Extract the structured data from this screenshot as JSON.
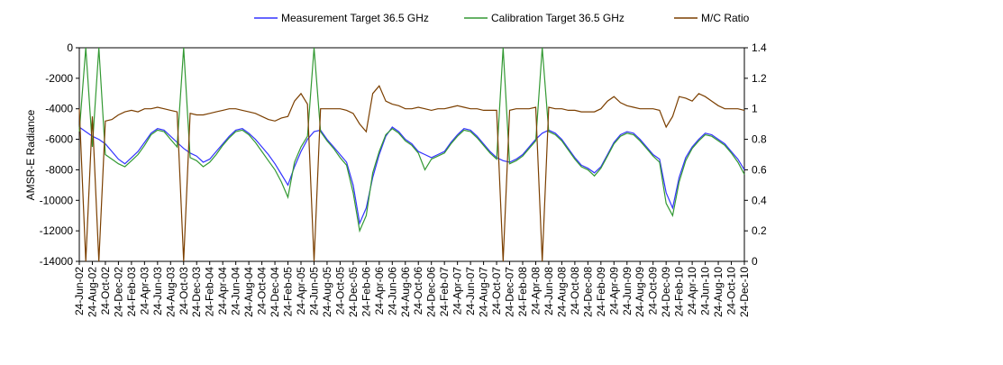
{
  "chart_data": {
    "type": "line",
    "categories": [
      "24-Jun-02",
      null,
      "24-Aug-02",
      null,
      "24-Oct-02",
      null,
      "24-Dec-02",
      null,
      "24-Feb-03",
      null,
      "24-Apr-03",
      null,
      "24-Jun-03",
      null,
      "24-Aug-03",
      null,
      "24-Oct-03",
      null,
      "24-Dec-03",
      null,
      "24-Feb-04",
      null,
      "24-Apr-04",
      null,
      "24-Jun-04",
      null,
      "24-Aug-04",
      null,
      "24-Oct-04",
      null,
      "24-Dec-04",
      null,
      "24-Feb-05",
      null,
      "24-Apr-05",
      null,
      "24-Jun-05",
      null,
      "24-Aug-05",
      null,
      "24-Oct-05",
      null,
      "24-Dec-05",
      null,
      "24-Feb-06",
      null,
      "24-Apr-06",
      null,
      "24-Jun-06",
      null,
      "24-Aug-06",
      null,
      "24-Oct-06",
      null,
      "24-Dec-06",
      null,
      "24-Feb-07",
      null,
      "24-Apr-07",
      null,
      "24-Jun-07",
      null,
      "24-Aug-07",
      null,
      "24-Oct-07",
      null,
      "24-Dec-07",
      null,
      "24-Feb-08",
      null,
      "24-Apr-08",
      null,
      "24-Jun-08",
      null,
      "24-Aug-08",
      null,
      "24-Oct-08",
      null,
      "24-Dec-08",
      null,
      "24-Feb-09",
      null,
      "24-Apr-09",
      null,
      "24-Jun-09",
      null,
      "24-Aug-09",
      null,
      "24-Oct-09",
      null,
      "24-Dec-09",
      null,
      "24-Feb-10",
      null,
      "24-Apr-10",
      null,
      "24-Jun-10",
      null,
      "24-Aug-10",
      null,
      "24-Oct-10",
      null,
      "24-Dec-10"
    ],
    "series": [
      {
        "name": "Measurement Target 36.5 GHz",
        "color": "#3333ff",
        "values": [
          -5200,
          -5500,
          -5800,
          -6000,
          -6300,
          -6800,
          -7300,
          -7600,
          -7200,
          -6800,
          -6200,
          -5600,
          -5300,
          -5400,
          -5800,
          -6200,
          -6600,
          -6900,
          -7100,
          -7500,
          -7300,
          -6800,
          -6300,
          -5800,
          -5400,
          -5300,
          -5600,
          -6000,
          -6500,
          -7000,
          -7600,
          -8300,
          -9000,
          -7800,
          -6800,
          -6000,
          -5500,
          -5400,
          -6000,
          -6500,
          -7000,
          -7500,
          -9000,
          -11500,
          -10500,
          -8500,
          -7000,
          -5800,
          -5200,
          -5500,
          -6000,
          -6300,
          -6800,
          -7000,
          -7200,
          -7000,
          -6800,
          -6200,
          -5700,
          -5300,
          -5400,
          -5800,
          -6300,
          -6800,
          -7200,
          -7400,
          -7500,
          -7300,
          -7000,
          -6500,
          -6000,
          -5600,
          -5400,
          -5600,
          -6000,
          -6600,
          -7200,
          -7700,
          -7900,
          -8200,
          -7800,
          -7000,
          -6200,
          -5700,
          -5500,
          -5600,
          -6000,
          -6500,
          -7000,
          -7300,
          -9500,
          -10500,
          -8500,
          -7200,
          -6500,
          -6000,
          -5600,
          -5700,
          -6000,
          -6300,
          -6800,
          -7300,
          -8000
        ]
      },
      {
        "name": "Calibration Target 36.5 GHz",
        "color": "#339933",
        "values": [
          -5500,
          0,
          -6500,
          0,
          -7000,
          -7300,
          -7600,
          -7800,
          -7400,
          -7000,
          -6400,
          -5700,
          -5400,
          -5500,
          -6000,
          -6500,
          0,
          -7200,
          -7400,
          -7800,
          -7500,
          -7000,
          -6400,
          -5900,
          -5500,
          -5400,
          -5700,
          -6200,
          -6800,
          -7400,
          -8000,
          -8800,
          -9800,
          -7500,
          -6500,
          -5800,
          0,
          -5500,
          -6100,
          -6600,
          -7200,
          -7700,
          -9500,
          -12000,
          -11000,
          -8200,
          -6800,
          -5700,
          -5300,
          -5600,
          -6100,
          -6400,
          -6900,
          -8000,
          -7300,
          -7100,
          -6900,
          -6300,
          -5800,
          -5400,
          -5500,
          -5900,
          -6400,
          -6900,
          -7300,
          0,
          -7600,
          -7400,
          -7100,
          -6600,
          -6100,
          0,
          -5500,
          -5700,
          -6100,
          -6700,
          -7300,
          -7800,
          -8000,
          -8400,
          -7900,
          -7100,
          -6300,
          -5800,
          -5600,
          -5700,
          -6100,
          -6600,
          -7100,
          -7500,
          -10200,
          -11000,
          -8800,
          -7400,
          -6600,
          -6100,
          -5700,
          -5800,
          -6100,
          -6400,
          -6900,
          -7500,
          -8300
        ]
      },
      {
        "name": "M/C Ratio",
        "color": "#7b3f00",
        "axis": "y2",
        "values": [
          1.0,
          0,
          0.95,
          0,
          0.92,
          0.93,
          0.96,
          0.98,
          0.99,
          0.98,
          1.0,
          1.0,
          1.01,
          1.0,
          0.99,
          0.98,
          0,
          0.97,
          0.96,
          0.96,
          0.97,
          0.98,
          0.99,
          1.0,
          1.0,
          0.99,
          0.98,
          0.97,
          0.95,
          0.93,
          0.92,
          0.94,
          0.95,
          1.05,
          1.1,
          1.03,
          0,
          1.0,
          1.0,
          1.0,
          1.0,
          0.99,
          0.97,
          0.9,
          0.85,
          1.1,
          1.15,
          1.05,
          1.03,
          1.02,
          1.0,
          1.0,
          1.01,
          1.0,
          0.99,
          1.0,
          1.0,
          1.01,
          1.02,
          1.01,
          1.0,
          1.0,
          0.99,
          0.99,
          0.99,
          0,
          0.99,
          1.0,
          1.0,
          1.0,
          1.01,
          0,
          1.01,
          1.0,
          1.0,
          0.99,
          0.99,
          0.98,
          0.98,
          0.98,
          1.0,
          1.05,
          1.08,
          1.04,
          1.02,
          1.01,
          1.0,
          1.0,
          1.0,
          0.99,
          0.88,
          0.95,
          1.08,
          1.07,
          1.05,
          1.1,
          1.08,
          1.05,
          1.02,
          1.0,
          1.0,
          1.0,
          0.99
        ]
      }
    ],
    "ylabel": "AMSR-E Radiance",
    "ylim": [
      -14000,
      0
    ],
    "yticks": [
      0,
      -2000,
      -4000,
      -6000,
      -8000,
      -10000,
      -12000,
      -14000
    ],
    "y2lim": [
      0,
      1.4
    ],
    "y2ticks": [
      1.4,
      1.2,
      1,
      0.8,
      0.6,
      0.4,
      0.2,
      0
    ],
    "grid": false,
    "legend": "top"
  }
}
